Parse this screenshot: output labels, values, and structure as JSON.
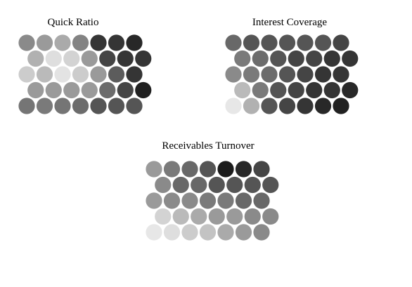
{
  "chart_data": [
    {
      "type": "heatmap",
      "title": "Quick Ratio",
      "grid": {
        "rows": 5,
        "cols": 7,
        "values": [
          [
            0.47,
            0.4,
            0.33,
            0.5,
            0.84,
            0.84,
            0.9
          ],
          [
            0.3,
            0.1,
            0.15,
            0.4,
            0.77,
            0.84,
            0.84
          ],
          [
            0.18,
            0.26,
            0.08,
            0.18,
            0.4,
            0.67,
            0.84
          ],
          [
            0.4,
            0.4,
            0.4,
            0.4,
            0.6,
            0.77,
            0.93
          ],
          [
            0.56,
            0.54,
            0.56,
            0.6,
            0.7,
            0.7,
            0.7
          ]
        ]
      }
    },
    {
      "type": "heatmap",
      "title": "Interest Coverage",
      "grid": {
        "rows": 5,
        "cols": 7,
        "values": [
          [
            0.62,
            0.7,
            0.7,
            0.7,
            0.7,
            0.7,
            0.77
          ],
          [
            0.54,
            0.6,
            0.7,
            0.77,
            0.77,
            0.84,
            0.84
          ],
          [
            0.47,
            0.54,
            0.6,
            0.7,
            0.77,
            0.84,
            0.84
          ],
          [
            0.26,
            0.54,
            0.7,
            0.77,
            0.84,
            0.84,
            0.9
          ],
          [
            0.06,
            0.3,
            0.7,
            0.77,
            0.84,
            0.9,
            0.93
          ]
        ]
      }
    },
    {
      "type": "heatmap",
      "title": "Receivables Turnover",
      "grid": {
        "rows": 5,
        "cols": 7,
        "values": [
          [
            0.4,
            0.54,
            0.62,
            0.7,
            0.95,
            0.9,
            0.77
          ],
          [
            0.47,
            0.62,
            0.62,
            0.7,
            0.7,
            0.7,
            0.7
          ],
          [
            0.4,
            0.47,
            0.47,
            0.54,
            0.54,
            0.62,
            0.62
          ],
          [
            0.15,
            0.26,
            0.33,
            0.4,
            0.4,
            0.47,
            0.47
          ],
          [
            0.06,
            0.1,
            0.18,
            0.22,
            0.33,
            0.4,
            0.47
          ]
        ]
      }
    }
  ]
}
